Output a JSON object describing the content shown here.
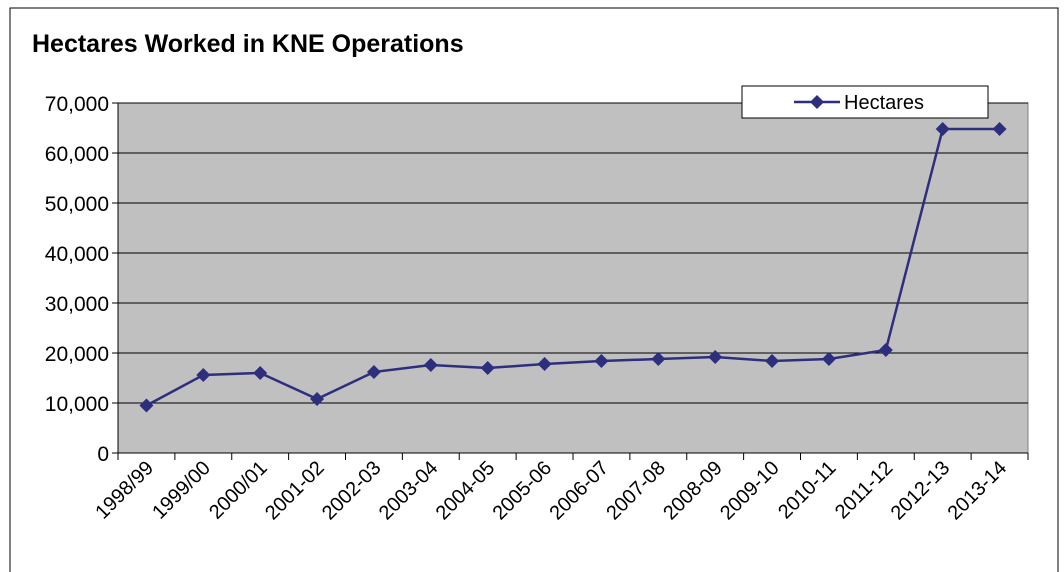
{
  "chart_data": {
    "type": "line",
    "title": "Hectares Worked in KNE Operations",
    "categories": [
      "1998/99",
      "1999/00",
      "2000/01",
      "2001-02",
      "2002-03",
      "2003-04",
      "2004-05",
      "2005-06",
      "2006-07",
      "2007-08",
      "2008-09",
      "2009-10",
      "2010-11",
      "2011-12",
      "2012-13",
      "2013-14"
    ],
    "series": [
      {
        "name": "Hectares",
        "color": "#2e2e7e",
        "values": [
          9500,
          15600,
          16000,
          10800,
          16200,
          17600,
          17000,
          17800,
          18400,
          18800,
          19200,
          18400,
          18800,
          20600,
          64800,
          64800
        ]
      }
    ],
    "ylim": [
      0,
      70000
    ],
    "yticks": [
      0,
      {
        "value": 10000,
        "label": "10,000"
      },
      {
        "value": 20000,
        "label": "20,000"
      },
      {
        "value": 30000,
        "label": "30,000"
      },
      {
        "value": 40000,
        "label": "40,000"
      },
      {
        "value": 50000,
        "label": "50,000"
      },
      {
        "value": 60000,
        "label": "60,000"
      },
      {
        "value": 70000,
        "label": "70,000"
      }
    ],
    "grid": true,
    "legend": "top-right"
  }
}
